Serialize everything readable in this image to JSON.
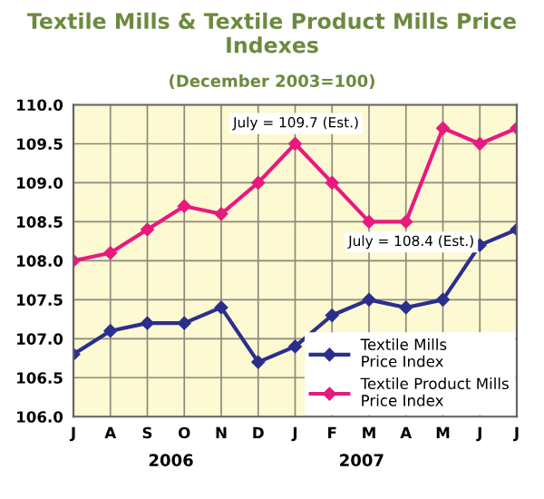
{
  "chart_data": {
    "type": "line",
    "title": "Textile Mills & Textile Product Mills Price Indexes",
    "subtitle": "(December 2003=100)",
    "categories": [
      "J",
      "A",
      "S",
      "O",
      "N",
      "D",
      "J",
      "F",
      "M",
      "A",
      "M",
      "J",
      "J"
    ],
    "series": [
      {
        "name": "Textile Mills Price Index",
        "color": "#2b2f8c",
        "values": [
          106.8,
          107.1,
          107.2,
          107.2,
          107.4,
          106.7,
          106.9,
          107.3,
          107.5,
          107.4,
          107.5,
          108.2,
          108.4
        ]
      },
      {
        "name": "Textile Product Mills Price Index",
        "color": "#e8197f",
        "values": [
          108.0,
          108.1,
          108.4,
          108.7,
          108.6,
          109.0,
          109.5,
          109.0,
          108.5,
          108.5,
          109.7,
          109.5,
          109.7
        ]
      }
    ],
    "ylim": [
      106.0,
      110.0
    ],
    "yticks": [
      {
        "value": 106,
        "label": "106.0"
      },
      {
        "value": 106.5,
        "label": "106.5"
      },
      {
        "value": 107,
        "label": "107.0"
      },
      {
        "value": 107.5,
        "label": "107.5"
      },
      {
        "value": 108,
        "label": "108.0"
      },
      {
        "value": 108.5,
        "label": "108.5"
      },
      {
        "value": 109,
        "label": "109.0"
      },
      {
        "value": 109.5,
        "label": "109.5"
      },
      {
        "value": 110,
        "label": "110.0"
      }
    ],
    "annotations": [
      "July = 109.7 (Est.)",
      "July = 108.4 (Est.)",
      "2006",
      "2007"
    ],
    "grid": true,
    "legend": "bottom right",
    "marker": "diamond",
    "line_style": "solid"
  }
}
